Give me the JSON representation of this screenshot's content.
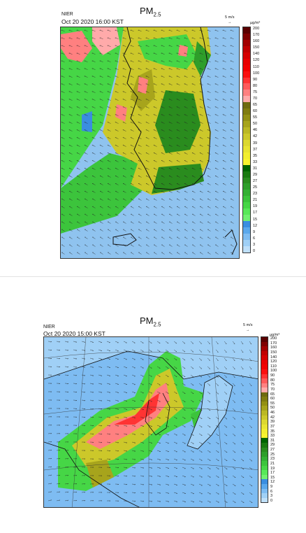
{
  "panels": [
    {
      "agency": "NIER",
      "title_main": "PM",
      "title_sub": "2.5",
      "timestamp": "Oct 20 2020 16:00 KST",
      "wind_ref_label": "5 m/s",
      "unit_label": "µg/m³",
      "colorbar_labels": [
        "200",
        "170",
        "160",
        "150",
        "140",
        "120",
        "110",
        "100",
        "90",
        "80",
        "75",
        "70",
        "65",
        "60",
        "55",
        "50",
        "46",
        "42",
        "39",
        "37",
        "35",
        "33",
        "31",
        "29",
        "27",
        "25",
        "23",
        "21",
        "19",
        "17",
        "15",
        "12",
        "9",
        "6",
        "3",
        "0"
      ]
    },
    {
      "agency": "NIER",
      "title_main": "PM",
      "title_sub": "2.5",
      "timestamp": "Oct 20 2020 15:00 KST",
      "wind_ref_label": "5 m/s",
      "unit_label": "µg/m³",
      "colorbar_labels": [
        "200",
        "170",
        "160",
        "150",
        "140",
        "120",
        "110",
        "100",
        "90",
        "80",
        "75",
        "70",
        "65",
        "60",
        "55",
        "50",
        "46",
        "42",
        "39",
        "37",
        "35",
        "33",
        "31",
        "29",
        "27",
        "25",
        "23",
        "21",
        "19",
        "17",
        "15",
        "12",
        "9",
        "6",
        "3",
        "0"
      ]
    }
  ],
  "colors": {
    "band_red": [
      "#5a0000",
      "#7e0000",
      "#a30000",
      "#c00000",
      "#d60000",
      "#e80000",
      "#f20000",
      "#fb1010",
      "#ff3333",
      "#ff5a5a",
      "#ff8080",
      "#ffaaaa"
    ],
    "band_yellow": [
      "#6e6a10",
      "#807c10",
      "#939014",
      "#a7a41c",
      "#bbb824",
      "#ccc82a",
      "#dcd830",
      "#e8e432",
      "#f2ee30",
      "#f8f430"
    ],
    "band_green": [
      "#006400",
      "#1a7a10",
      "#2a8c1e",
      "#2e9e2a",
      "#34b034",
      "#3cc43c",
      "#46d646",
      "#58e858",
      "#70f070"
    ],
    "band_blue": [
      "#3a8ee0",
      "#5aa8ec",
      "#7ebcf2",
      "#a0d0f6",
      "#bfe0fa"
    ],
    "sea": "#8fc3ef",
    "coast": "#111111"
  }
}
